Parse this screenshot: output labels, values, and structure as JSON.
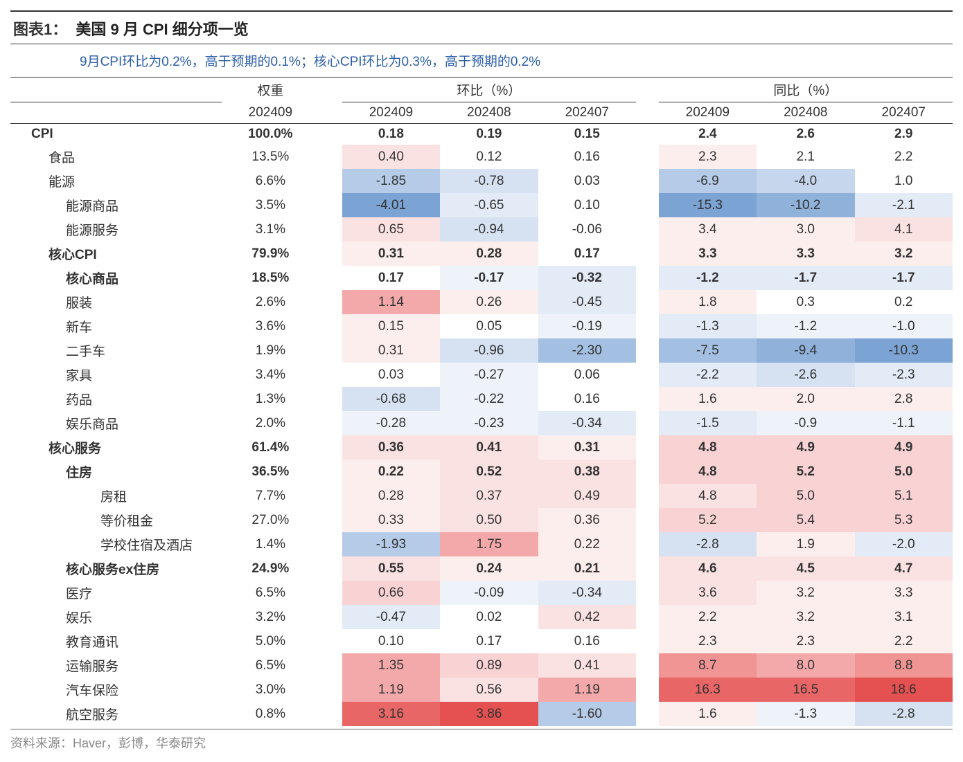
{
  "title_label": "图表1：",
  "title_text": "美国 9 月 CPI 细分项一览",
  "subtitle": "9月CPI环比为0.2%，高于预期的0.1%；核心CPI环比为0.3%，高于预期的0.2%",
  "source": "资料来源：Haver，彭博，华泰研究",
  "headers": {
    "weight": "权重",
    "mom": "环比（%）",
    "yoy": "同比（%）",
    "periods": [
      "202409",
      "202409",
      "202408",
      "202407",
      "202409",
      "202408",
      "202407"
    ]
  },
  "col_widths": {
    "label": 280,
    "data": 130
  },
  "colors": {
    "scale_red": [
      "#ffffff",
      "#fdeeee",
      "#fbe2e2",
      "#f9d3d3",
      "#f6bebe",
      "#f3a9a9",
      "#f09494",
      "#ec7c7c",
      "#e96666",
      "#e55050"
    ],
    "scale_blue": [
      "#ffffff",
      "#eef3fa",
      "#e3ebf6",
      "#d6e2f2",
      "#c6d7ed",
      "#b5cbe7",
      "#a3bfe1",
      "#8fb1da",
      "#7ba3d3",
      "#6394cb"
    ]
  },
  "rows": [
    {
      "label": "CPI",
      "indent": 0,
      "bold": true,
      "weight": "100.0%",
      "mom": [
        {
          "v": "0.18",
          "c": 0
        },
        {
          "v": "0.19",
          "c": 0
        },
        {
          "v": "0.15",
          "c": 0
        }
      ],
      "yoy": [
        {
          "v": "2.4",
          "c": 0
        },
        {
          "v": "2.6",
          "c": 0
        },
        {
          "v": "2.9",
          "c": 0
        }
      ]
    },
    {
      "label": "食品",
      "indent": 1,
      "weight": "13.5%",
      "mom": [
        {
          "v": "0.40",
          "c": 2
        },
        {
          "v": "0.12",
          "c": 0
        },
        {
          "v": "0.16",
          "c": 0
        }
      ],
      "yoy": [
        {
          "v": "2.3",
          "c": 1
        },
        {
          "v": "2.1",
          "c": 0
        },
        {
          "v": "2.2",
          "c": 0
        }
      ]
    },
    {
      "label": "能源",
      "indent": 1,
      "weight": "6.6%",
      "mom": [
        {
          "v": "-1.85",
          "c": -5
        },
        {
          "v": "-0.78",
          "c": -3
        },
        {
          "v": "0.03",
          "c": 0
        }
      ],
      "yoy": [
        {
          "v": "-6.9",
          "c": -5
        },
        {
          "v": "-4.0",
          "c": -4
        },
        {
          "v": "1.0",
          "c": 0
        }
      ]
    },
    {
      "label": "能源商品",
      "indent": 2,
      "weight": "3.5%",
      "mom": [
        {
          "v": "-4.01",
          "c": -8
        },
        {
          "v": "-0.65",
          "c": -2
        },
        {
          "v": "0.10",
          "c": 0
        }
      ],
      "yoy": [
        {
          "v": "-15.3",
          "c": -8
        },
        {
          "v": "-10.2",
          "c": -7
        },
        {
          "v": "-2.1",
          "c": -2
        }
      ]
    },
    {
      "label": "能源服务",
      "indent": 2,
      "weight": "3.1%",
      "mom": [
        {
          "v": "0.65",
          "c": 2
        },
        {
          "v": "-0.94",
          "c": -3
        },
        {
          "v": "-0.06",
          "c": 0
        }
      ],
      "yoy": [
        {
          "v": "3.4",
          "c": 1
        },
        {
          "v": "3.0",
          "c": 1
        },
        {
          "v": "4.1",
          "c": 2
        }
      ]
    },
    {
      "label": "核心CPI",
      "indent": 1,
      "bold": true,
      "weight": "79.9%",
      "mom": [
        {
          "v": "0.31",
          "c": 1
        },
        {
          "v": "0.28",
          "c": 1
        },
        {
          "v": "0.17",
          "c": 0
        }
      ],
      "yoy": [
        {
          "v": "3.3",
          "c": 1
        },
        {
          "v": "3.3",
          "c": 1
        },
        {
          "v": "3.2",
          "c": 1
        }
      ]
    },
    {
      "label": "核心商品",
      "indent": 2,
      "bold": true,
      "weight": "18.5%",
      "mom": [
        {
          "v": "0.17",
          "c": 0
        },
        {
          "v": "-0.17",
          "c": -1
        },
        {
          "v": "-0.32",
          "c": -2
        }
      ],
      "yoy": [
        {
          "v": "-1.2",
          "c": -2
        },
        {
          "v": "-1.7",
          "c": -2
        },
        {
          "v": "-1.7",
          "c": -2
        }
      ]
    },
    {
      "label": "服装",
      "indent": 2,
      "weight": "2.6%",
      "mom": [
        {
          "v": "1.14",
          "c": 5
        },
        {
          "v": "0.26",
          "c": 1
        },
        {
          "v": "-0.45",
          "c": -2
        }
      ],
      "yoy": [
        {
          "v": "1.8",
          "c": 1
        },
        {
          "v": "0.3",
          "c": 0
        },
        {
          "v": "0.2",
          "c": 0
        }
      ]
    },
    {
      "label": "新车",
      "indent": 2,
      "weight": "3.6%",
      "mom": [
        {
          "v": "0.15",
          "c": 1
        },
        {
          "v": "0.05",
          "c": 0
        },
        {
          "v": "-0.19",
          "c": -1
        }
      ],
      "yoy": [
        {
          "v": "-1.3",
          "c": -2
        },
        {
          "v": "-1.2",
          "c": -1
        },
        {
          "v": "-1.0",
          "c": -1
        }
      ]
    },
    {
      "label": "二手车",
      "indent": 2,
      "weight": "1.9%",
      "mom": [
        {
          "v": "0.31",
          "c": 1
        },
        {
          "v": "-0.96",
          "c": -3
        },
        {
          "v": "-2.30",
          "c": -6
        }
      ],
      "yoy": [
        {
          "v": "-7.5",
          "c": -6
        },
        {
          "v": "-9.4",
          "c": -7
        },
        {
          "v": "-10.3",
          "c": -8
        }
      ]
    },
    {
      "label": "家具",
      "indent": 2,
      "weight": "3.4%",
      "mom": [
        {
          "v": "0.03",
          "c": 0
        },
        {
          "v": "-0.27",
          "c": -1
        },
        {
          "v": "0.06",
          "c": 0
        }
      ],
      "yoy": [
        {
          "v": "-2.2",
          "c": -2
        },
        {
          "v": "-2.6",
          "c": -3
        },
        {
          "v": "-2.3",
          "c": -2
        }
      ]
    },
    {
      "label": "药品",
      "indent": 2,
      "weight": "1.3%",
      "mom": [
        {
          "v": "-0.68",
          "c": -3
        },
        {
          "v": "-0.22",
          "c": -1
        },
        {
          "v": "0.16",
          "c": 0
        }
      ],
      "yoy": [
        {
          "v": "1.6",
          "c": 1
        },
        {
          "v": "2.0",
          "c": 1
        },
        {
          "v": "2.8",
          "c": 1
        }
      ]
    },
    {
      "label": "娱乐商品",
      "indent": 2,
      "weight": "2.0%",
      "mom": [
        {
          "v": "-0.28",
          "c": -1
        },
        {
          "v": "-0.23",
          "c": -1
        },
        {
          "v": "-0.34",
          "c": -2
        }
      ],
      "yoy": [
        {
          "v": "-1.5",
          "c": -2
        },
        {
          "v": "-0.9",
          "c": -1
        },
        {
          "v": "-1.1",
          "c": -1
        }
      ]
    },
    {
      "label": "核心服务",
      "indent": 1,
      "bold": true,
      "weight": "61.4%",
      "mom": [
        {
          "v": "0.36",
          "c": 2
        },
        {
          "v": "0.41",
          "c": 2
        },
        {
          "v": "0.31",
          "c": 1
        }
      ],
      "yoy": [
        {
          "v": "4.8",
          "c": 3
        },
        {
          "v": "4.9",
          "c": 3
        },
        {
          "v": "4.9",
          "c": 3
        }
      ]
    },
    {
      "label": "住房",
      "indent": 2,
      "bold": true,
      "weight": "36.5%",
      "mom": [
        {
          "v": "0.22",
          "c": 1
        },
        {
          "v": "0.52",
          "c": 2
        },
        {
          "v": "0.38",
          "c": 2
        }
      ],
      "yoy": [
        {
          "v": "4.8",
          "c": 3
        },
        {
          "v": "5.2",
          "c": 3
        },
        {
          "v": "5.0",
          "c": 3
        }
      ]
    },
    {
      "label": "房租",
      "indent": 3,
      "weight": "7.7%",
      "mom": [
        {
          "v": "0.28",
          "c": 1
        },
        {
          "v": "0.37",
          "c": 2
        },
        {
          "v": "0.49",
          "c": 2
        }
      ],
      "yoy": [
        {
          "v": "4.8",
          "c": 2
        },
        {
          "v": "5.0",
          "c": 3
        },
        {
          "v": "5.1",
          "c": 3
        }
      ]
    },
    {
      "label": "等价租金",
      "indent": 3,
      "weight": "27.0%",
      "mom": [
        {
          "v": "0.33",
          "c": 1
        },
        {
          "v": "0.50",
          "c": 2
        },
        {
          "v": "0.36",
          "c": 1
        }
      ],
      "yoy": [
        {
          "v": "5.2",
          "c": 3
        },
        {
          "v": "5.4",
          "c": 3
        },
        {
          "v": "5.3",
          "c": 3
        }
      ]
    },
    {
      "label": "学校住宿及酒店",
      "indent": 3,
      "weight": "1.4%",
      "mom": [
        {
          "v": "-1.93",
          "c": -5
        },
        {
          "v": "1.75",
          "c": 5
        },
        {
          "v": "0.22",
          "c": 1
        }
      ],
      "yoy": [
        {
          "v": "-2.8",
          "c": -3
        },
        {
          "v": "1.9",
          "c": 1
        },
        {
          "v": "-2.0",
          "c": -2
        }
      ]
    },
    {
      "label": "核心服务ex住房",
      "indent": 2,
      "bold": true,
      "weight": "24.9%",
      "mom": [
        {
          "v": "0.55",
          "c": 2
        },
        {
          "v": "0.24",
          "c": 1
        },
        {
          "v": "0.21",
          "c": 1
        }
      ],
      "yoy": [
        {
          "v": "4.6",
          "c": 2
        },
        {
          "v": "4.5",
          "c": 2
        },
        {
          "v": "4.7",
          "c": 2
        }
      ]
    },
    {
      "label": "医疗",
      "indent": 2,
      "weight": "6.5%",
      "mom": [
        {
          "v": "0.66",
          "c": 3
        },
        {
          "v": "-0.09",
          "c": -1
        },
        {
          "v": "-0.34",
          "c": -2
        }
      ],
      "yoy": [
        {
          "v": "3.6",
          "c": 2
        },
        {
          "v": "3.2",
          "c": 1
        },
        {
          "v": "3.3",
          "c": 1
        }
      ]
    },
    {
      "label": "娱乐",
      "indent": 2,
      "weight": "3.2%",
      "mom": [
        {
          "v": "-0.47",
          "c": -2
        },
        {
          "v": "0.02",
          "c": 0
        },
        {
          "v": "0.42",
          "c": 2
        }
      ],
      "yoy": [
        {
          "v": "2.2",
          "c": 1
        },
        {
          "v": "3.2",
          "c": 1
        },
        {
          "v": "3.1",
          "c": 1
        }
      ]
    },
    {
      "label": "教育通讯",
      "indent": 2,
      "weight": "5.0%",
      "mom": [
        {
          "v": "0.10",
          "c": 0
        },
        {
          "v": "0.17",
          "c": 0
        },
        {
          "v": "0.16",
          "c": 0
        }
      ],
      "yoy": [
        {
          "v": "2.3",
          "c": 1
        },
        {
          "v": "2.3",
          "c": 1
        },
        {
          "v": "2.2",
          "c": 1
        }
      ]
    },
    {
      "label": "运输服务",
      "indent": 2,
      "weight": "6.5%",
      "mom": [
        {
          "v": "1.35",
          "c": 5
        },
        {
          "v": "0.89",
          "c": 3
        },
        {
          "v": "0.41",
          "c": 2
        }
      ],
      "yoy": [
        {
          "v": "8.7",
          "c": 6
        },
        {
          "v": "8.0",
          "c": 5
        },
        {
          "v": "8.8",
          "c": 6
        }
      ]
    },
    {
      "label": "汽车保险",
      "indent": 2,
      "weight": "3.0%",
      "mom": [
        {
          "v": "1.19",
          "c": 5
        },
        {
          "v": "0.56",
          "c": 2
        },
        {
          "v": "1.19",
          "c": 5
        }
      ],
      "yoy": [
        {
          "v": "16.3",
          "c": 8
        },
        {
          "v": "16.5",
          "c": 8
        },
        {
          "v": "18.6",
          "c": 9
        }
      ]
    },
    {
      "label": "航空服务",
      "indent": 2,
      "weight": "0.8%",
      "mom": [
        {
          "v": "3.16",
          "c": 8
        },
        {
          "v": "3.86",
          "c": 9
        },
        {
          "v": "-1.60",
          "c": -5
        }
      ],
      "yoy": [
        {
          "v": "1.6",
          "c": 1
        },
        {
          "v": "-1.3",
          "c": -1
        },
        {
          "v": "-2.8",
          "c": -3
        }
      ]
    }
  ]
}
